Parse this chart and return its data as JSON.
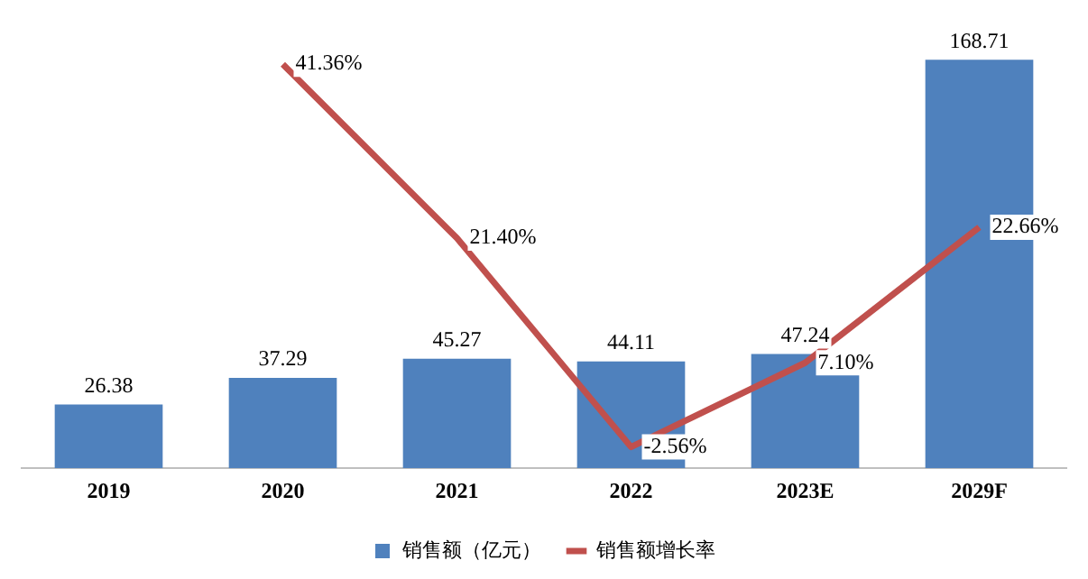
{
  "chart_data": {
    "type": "bar",
    "categories": [
      "2019",
      "2020",
      "2021",
      "2022",
      "2023E",
      "2029F"
    ],
    "series": [
      {
        "name": "销售额（亿元）",
        "color": "#4f81bd",
        "values": [
          26.38,
          37.29,
          45.27,
          44.11,
          47.24,
          168.71
        ],
        "value_labels": [
          "26.38",
          "37.29",
          "45.27",
          "44.11",
          "47.24",
          "168.71"
        ]
      },
      {
        "name": "销售额增长率",
        "type": "line",
        "axis": "y2",
        "color": "#c0504d",
        "values": [
          null,
          41.36,
          21.4,
          -2.56,
          7.1,
          22.66
        ],
        "value_labels": [
          null,
          "41.36%",
          "21.40%",
          "-2.56%",
          "7.10%",
          "22.66%"
        ]
      }
    ],
    "tick_labels": "x",
    "grid": false,
    "legend": "bottom",
    "marker": "none"
  }
}
